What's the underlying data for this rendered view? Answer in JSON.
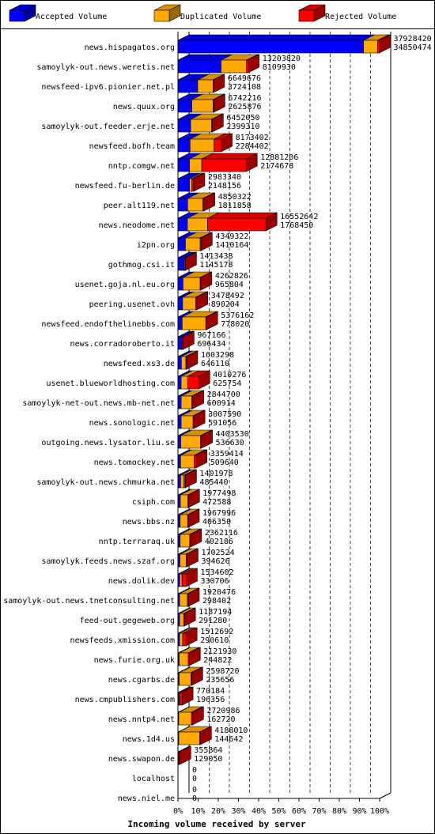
{
  "chart_data": {
    "type": "bar",
    "orientation": "horizontal",
    "stacked": true,
    "style": "3d",
    "xlabel": "Incoming volume received by server",
    "xlim": [
      0,
      100
    ],
    "x_unit": "%",
    "x_ticks": [
      "0%",
      "10%",
      "20%",
      "30%",
      "40%",
      "50%",
      "60%",
      "70%",
      "80%",
      "90%",
      "100%"
    ],
    "grid": true,
    "legend_position": "top",
    "series": [
      {
        "name": "Accepted Volume",
        "color": "#0000ff"
      },
      {
        "name": "Duplicated Volume",
        "color": "#ffaa00"
      },
      {
        "name": "Rejected Volume",
        "color": "#ff0000"
      }
    ],
    "rows": [
      {
        "server": "news.hispagatos.org",
        "total": "37928420",
        "accepted": "34850474",
        "acc_pct": 92.0,
        "dup_pct": 7.0,
        "rej_pct": 0.8
      },
      {
        "server": "samoylyk-out.news.weretis.net",
        "total": "13203820",
        "accepted": "8109930",
        "acc_pct": 21.4,
        "dup_pct": 12.6,
        "rej_pct": 0.8
      },
      {
        "server": "newsfeed-ipv6.pionier.net.pl",
        "total": "6649676",
        "accepted": "3724108",
        "acc_pct": 9.8,
        "dup_pct": 7.6,
        "rej_pct": 0.2
      },
      {
        "server": "news.quux.org",
        "total": "6742216",
        "accepted": "2625876",
        "acc_pct": 6.9,
        "dup_pct": 10.5,
        "rej_pct": 0.4
      },
      {
        "server": "samoylyk-out.feeder.erje.net",
        "total": "6452050",
        "accepted": "2399310",
        "acc_pct": 6.3,
        "dup_pct": 10.3,
        "rej_pct": 0.4
      },
      {
        "server": "newsfeed.bofh.team",
        "total": "8173402",
        "accepted": "2284402",
        "acc_pct": 6.0,
        "dup_pct": 11.9,
        "rej_pct": 3.5
      },
      {
        "server": "nntp.comgw.net",
        "total": "12881206",
        "accepted": "2174678",
        "acc_pct": 5.7,
        "dup_pct": 6.1,
        "rej_pct": 22.0
      },
      {
        "server": "newsfeed.fu-berlin.de",
        "total": "2983340",
        "accepted": "2148156",
        "acc_pct": 5.7,
        "dup_pct": 1.2,
        "rej_pct": 0.9
      },
      {
        "server": "peer.alt119.net",
        "total": "4850322",
        "accepted": "1811858",
        "acc_pct": 4.8,
        "dup_pct": 7.6,
        "rej_pct": 0.4
      },
      {
        "server": "news.neodome.net",
        "total": "16552642",
        "accepted": "1768450",
        "acc_pct": 4.7,
        "dup_pct": 10.0,
        "rej_pct": 28.9
      },
      {
        "server": "i2pn.org",
        "total": "4349322",
        "accepted": "1410164",
        "acc_pct": 3.7,
        "dup_pct": 7.3,
        "rej_pct": 0.5
      },
      {
        "server": "gothmog.csi.it",
        "total": "1413438",
        "accepted": "1145178",
        "acc_pct": 3.0,
        "dup_pct": 0.4,
        "rej_pct": 0.3
      },
      {
        "server": "usenet.goja.nl.eu.org",
        "total": "4262826",
        "accepted": "965804",
        "acc_pct": 2.5,
        "dup_pct": 8.5,
        "rej_pct": 0.3
      },
      {
        "server": "peering.usenet.ovh",
        "total": "3478492",
        "accepted": "890204",
        "acc_pct": 2.3,
        "dup_pct": 6.5,
        "rej_pct": 0.5
      },
      {
        "server": "newsfeed.endofthelinebbs.com",
        "total": "5376162",
        "accepted": "778020",
        "acc_pct": 2.1,
        "dup_pct": 11.7,
        "rej_pct": 0.4
      },
      {
        "server": "news.corradoroberto.it",
        "total": "967166",
        "accepted": "696434",
        "acc_pct": 1.8,
        "dup_pct": 0.3,
        "rej_pct": 0.4
      },
      {
        "server": "newsfeed.xs3.de",
        "total": "1603298",
        "accepted": "646110",
        "acc_pct": 1.7,
        "dup_pct": 2.2,
        "rej_pct": 0.4
      },
      {
        "server": "usenet.blueworldhosting.com",
        "total": "4010276",
        "accepted": "625754",
        "acc_pct": 1.6,
        "dup_pct": 3.2,
        "rej_pct": 5.5
      },
      {
        "server": "samoylyk-net-out.news.mb-net.net",
        "total": "2844700",
        "accepted": "600914",
        "acc_pct": 1.6,
        "dup_pct": 5.3,
        "rej_pct": 0.4
      },
      {
        "server": "news.sonologic.net",
        "total": "3007590",
        "accepted": "591056",
        "acc_pct": 1.6,
        "dup_pct": 5.9,
        "rej_pct": 0.4
      },
      {
        "server": "outgoing.news.lysator.liu.se",
        "total": "4403530",
        "accepted": "536630",
        "acc_pct": 1.4,
        "dup_pct": 9.8,
        "rej_pct": 0.4
      },
      {
        "server": "news.tomockey.net",
        "total": "3359414",
        "accepted": "509640",
        "acc_pct": 1.3,
        "dup_pct": 6.7,
        "rej_pct": 0.9
      },
      {
        "server": "samoylyk-out.news.chmurka.net",
        "total": "1401978",
        "accepted": "485440",
        "acc_pct": 1.3,
        "dup_pct": 1.7,
        "rej_pct": 0.7
      },
      {
        "server": "csiph.com",
        "total": "1977498",
        "accepted": "472588",
        "acc_pct": 1.2,
        "dup_pct": 3.7,
        "rej_pct": 0.3
      },
      {
        "server": "news.bbs.nz",
        "total": "1967996",
        "accepted": "406350",
        "acc_pct": 1.1,
        "dup_pct": 3.7,
        "rej_pct": 0.3
      },
      {
        "server": "nntp.terraraq.uk",
        "total": "2362116",
        "accepted": "402186",
        "acc_pct": 1.1,
        "dup_pct": 4.7,
        "rej_pct": 0.4
      },
      {
        "server": "samoylyk.feeds.news.szaf.org",
        "total": "1702524",
        "accepted": "394626",
        "acc_pct": 1.0,
        "dup_pct": 3.1,
        "rej_pct": 0.4
      },
      {
        "server": "news.dolik.dev",
        "total": "1534602",
        "accepted": "330706",
        "acc_pct": 0.9,
        "dup_pct": 1.1,
        "rej_pct": 2.1
      },
      {
        "server": "samoylyk-out.news.tnetconsulting.net",
        "total": "1920476",
        "accepted": "298402",
        "acc_pct": 0.8,
        "dup_pct": 3.9,
        "rej_pct": 0.4
      },
      {
        "server": "feed-out.gegeweb.org",
        "total": "1187194",
        "accepted": "291280",
        "acc_pct": 0.8,
        "dup_pct": 2.1,
        "rej_pct": 0.3
      },
      {
        "server": "newsfeeds.xmission.com",
        "total": "1512692",
        "accepted": "290610",
        "acc_pct": 0.8,
        "dup_pct": 1.5,
        "rej_pct": 1.7
      },
      {
        "server": "news.furie.org.uk",
        "total": "2121930",
        "accepted": "244822",
        "acc_pct": 0.6,
        "dup_pct": 4.5,
        "rej_pct": 0.5
      },
      {
        "server": "news.cgarbs.de",
        "total": "2598720",
        "accepted": "235656",
        "acc_pct": 0.6,
        "dup_pct": 5.8,
        "rej_pct": 0.4
      },
      {
        "server": "news.cmpublishers.com",
        "total": "770184",
        "accepted": "196356",
        "acc_pct": 0.5,
        "dup_pct": 0.2,
        "rej_pct": 1.3
      },
      {
        "server": "news.nntp4.net",
        "total": "2720986",
        "accepted": "162720",
        "acc_pct": 0.4,
        "dup_pct": 6.3,
        "rej_pct": 0.5
      },
      {
        "server": "news.1d4.us",
        "total": "4188010",
        "accepted": "144642",
        "acc_pct": 0.4,
        "dup_pct": 10.4,
        "rej_pct": 0.3
      },
      {
        "server": "news.swapon.de",
        "total": "355864",
        "accepted": "129050",
        "acc_pct": 0.3,
        "dup_pct": 0.2,
        "rej_pct": 0.4
      },
      {
        "server": "localhost",
        "total": "0",
        "accepted": "0",
        "acc_pct": 0,
        "dup_pct": 0,
        "rej_pct": 0
      },
      {
        "server": "news.niel.me",
        "total": "0",
        "accepted": "0",
        "acc_pct": 0,
        "dup_pct": 0,
        "rej_pct": 0
      }
    ]
  }
}
